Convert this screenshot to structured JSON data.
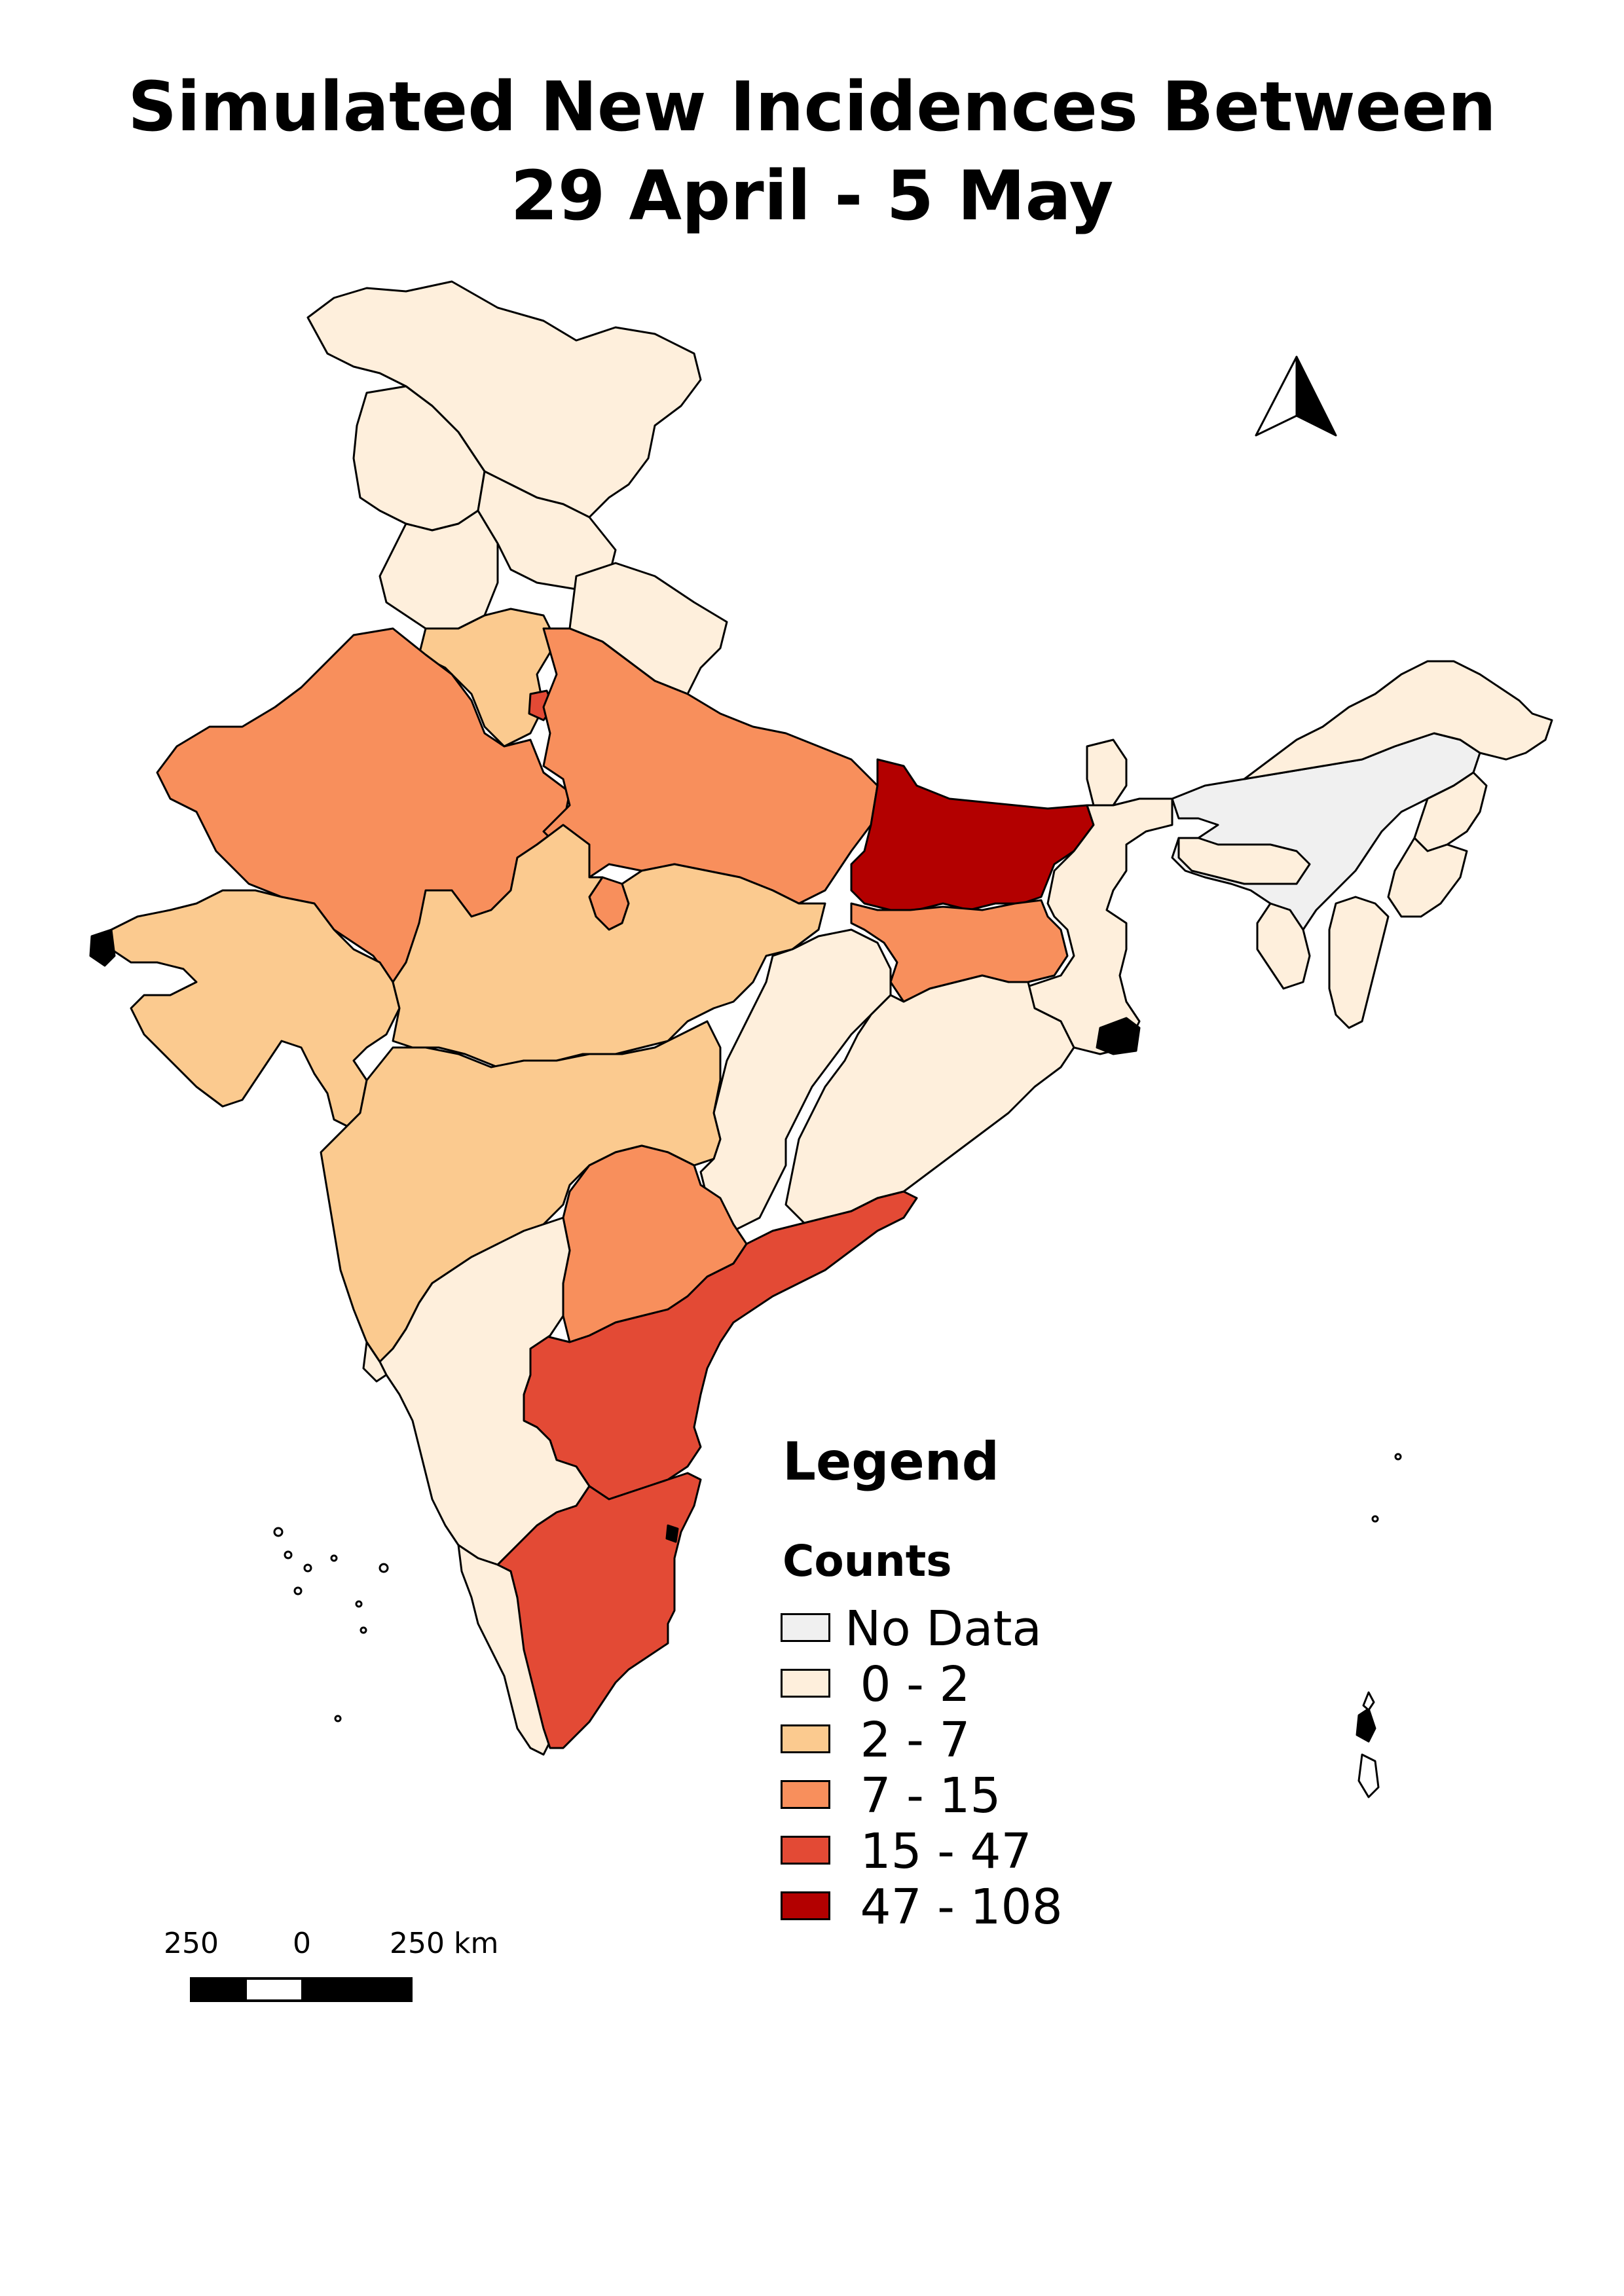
{
  "title_line1": "Simulated New Incidences Between",
  "title_line2": "29 April - 5 May",
  "legend": {
    "title": "Legend",
    "subtitle": "Counts",
    "items": [
      {
        "label": "No Data",
        "color": "#f0f0f0"
      },
      {
        "label": " 0 - 2",
        "color": "#feefdc"
      },
      {
        "label": " 2 - 7",
        "color": "#fbca8f"
      },
      {
        "label": " 7 - 15",
        "color": "#f88f5c"
      },
      {
        "label": " 15 - 47",
        "color": "#e34a35"
      },
      {
        "label": " 47 - 108",
        "color": "#b30000"
      }
    ]
  },
  "scale_bar": {
    "labels": [
      "250",
      "0",
      "250 km"
    ]
  },
  "north_arrow": {
    "icon": "north-arrow-icon"
  }
}
